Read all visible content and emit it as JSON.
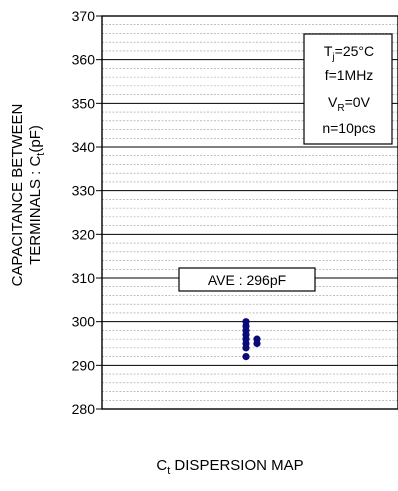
{
  "chart_data": {
    "type": "scatter",
    "title": "",
    "xlabel": "C_t DISPERSION MAP",
    "ylabel": "CAPACITANCE BETWEEN TERMINALS : C_t(pF)",
    "ylabel_line1": "CAPACITANCE BETWEEN",
    "ylabel_line2": "TERMINALS : C",
    "ylabel_sub": "t",
    "ylabel_unit": "(pF)",
    "xlabel_main": "C",
    "xlabel_sub": "t",
    "xlabel_rest": " DISPERSION MAP",
    "ylim": [
      280,
      370
    ],
    "yticks": [
      280,
      290,
      300,
      310,
      320,
      330,
      340,
      350,
      360,
      370
    ],
    "grid": true,
    "minor_grid_step": 2,
    "average_label": "AVE : 296pF",
    "conditions": {
      "tj": "T",
      "tj_sub": "j",
      "tj_val": "=25°C",
      "freq": "f=1MHz",
      "vr": "V",
      "vr_sub": "R",
      "vr_val": "=0V",
      "n": "n=10pcs"
    },
    "points": [
      {
        "x": 0,
        "y": 300
      },
      {
        "x": 0,
        "y": 299
      },
      {
        "x": 0,
        "y": 298
      },
      {
        "x": 0,
        "y": 297
      },
      {
        "x": 0,
        "y": 296
      },
      {
        "x": 1,
        "y": 296
      },
      {
        "x": 0,
        "y": 295
      },
      {
        "x": 1,
        "y": 295
      },
      {
        "x": 0,
        "y": 294
      },
      {
        "x": 0,
        "y": 292
      }
    ],
    "point_color": "#0a0a78"
  }
}
